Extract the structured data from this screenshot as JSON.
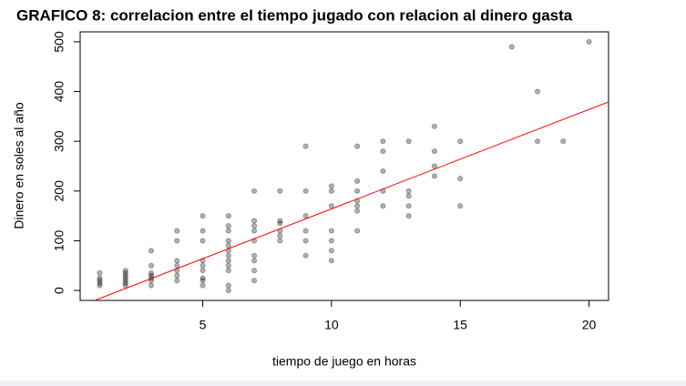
{
  "chart_data": {
    "type": "scatter",
    "title": "GRAFICO 8: correlacion entre el tiempo jugado con relacion al dinero gasta",
    "x_label": "tiempo de juego en horas",
    "y_label": "Dinero en soles al año",
    "series": [
      {
        "color": "rgba(0,0,0,0.3)",
        "x": [
          1,
          1,
          1,
          1,
          1,
          2,
          2,
          2,
          2,
          2,
          2,
          2,
          3,
          3,
          3,
          3,
          3,
          3,
          3,
          4,
          4,
          4,
          4,
          4,
          4,
          4,
          5,
          5,
          5,
          5,
          5,
          5,
          5,
          5,
          5,
          6,
          6,
          6,
          6,
          6,
          6,
          6,
          6,
          6,
          6,
          6,
          6,
          7,
          7,
          7,
          7,
          7,
          7,
          7,
          7,
          7,
          8,
          8,
          8,
          8,
          8,
          8,
          9,
          9,
          9,
          9,
          9,
          9,
          10,
          10,
          10,
          10,
          10,
          10,
          10,
          11,
          11,
          11,
          11,
          11,
          11,
          11,
          12,
          12,
          12,
          12,
          12,
          13,
          13,
          13,
          13,
          13,
          14,
          14,
          14,
          14,
          15,
          15,
          15,
          17,
          18,
          18,
          19,
          20
        ],
        "values": [
          10,
          15,
          20,
          25,
          35,
          10,
          15,
          20,
          25,
          30,
          35,
          40,
          10,
          20,
          25,
          30,
          35,
          50,
          80,
          20,
          30,
          40,
          50,
          60,
          100,
          120,
          10,
          20,
          25,
          40,
          50,
          60,
          100,
          120,
          150,
          0,
          10,
          40,
          50,
          60,
          70,
          80,
          90,
          100,
          120,
          130,
          150,
          20,
          40,
          60,
          70,
          100,
          120,
          130,
          140,
          200,
          100,
          110,
          120,
          135,
          140,
          200,
          70,
          100,
          120,
          150,
          200,
          290,
          60,
          80,
          100,
          120,
          170,
          200,
          210,
          120,
          160,
          170,
          180,
          200,
          220,
          290,
          170,
          200,
          240,
          280,
          300,
          150,
          170,
          190,
          200,
          300,
          230,
          250,
          280,
          330,
          170,
          225,
          300,
          490,
          300,
          400,
          300,
          500
        ]
      }
    ],
    "fit": {
      "color": "#ff0000",
      "intercept": -36,
      "slope": 20
    },
    "xlim": [
      0.24,
      20.76
    ],
    "xticks": [
      5,
      10,
      15,
      20
    ],
    "ylim": [
      -20,
      520
    ],
    "yticks": [
      0,
      100,
      200,
      300,
      400,
      500
    ]
  }
}
